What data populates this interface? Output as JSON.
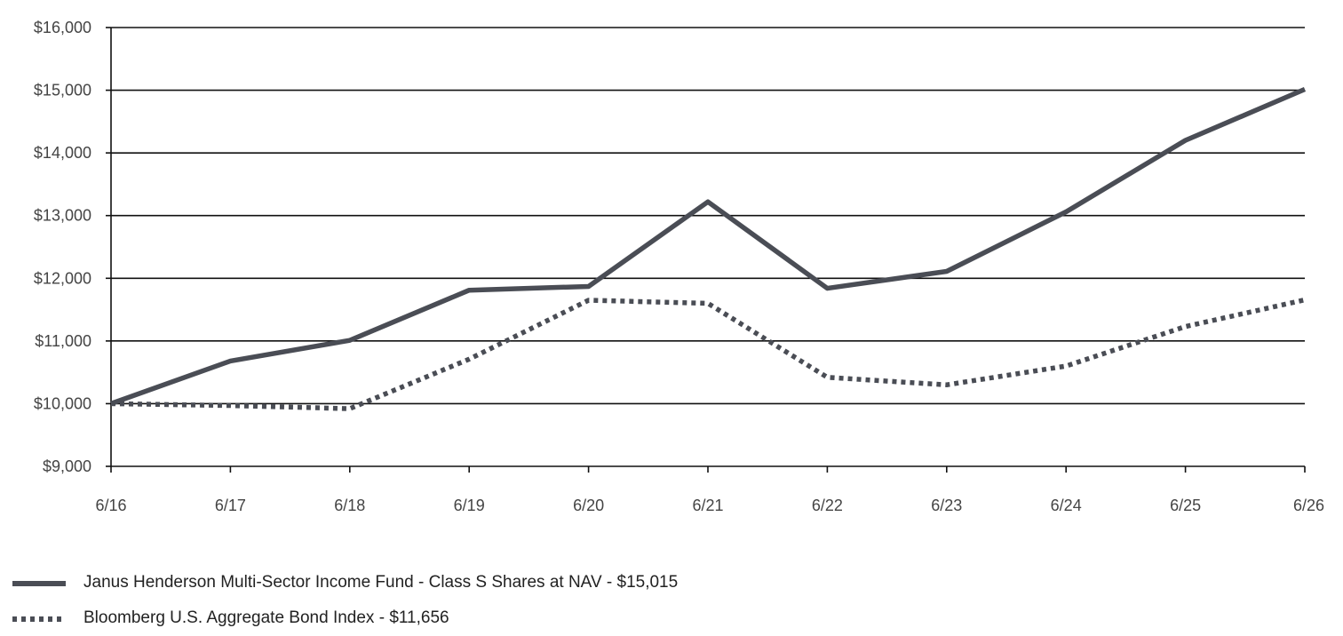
{
  "chart_data": {
    "type": "line",
    "title": "",
    "xlabel": "",
    "ylabel": "",
    "categories": [
      "6/16",
      "6/17",
      "6/18",
      "6/19",
      "6/20",
      "6/21",
      "6/22",
      "6/23",
      "6/24",
      "6/25",
      "6/26"
    ],
    "y_tick_labels": [
      "$9,000",
      "$10,000",
      "$11,000",
      "$12,000",
      "$13,000",
      "$14,000",
      "$15,000",
      "$16,000"
    ],
    "y_ticks": [
      9000,
      10000,
      11000,
      12000,
      13000,
      14000,
      15000,
      16000
    ],
    "ylim": [
      9000,
      16000
    ],
    "grid": "horizontal",
    "legend_position": "bottom-left",
    "series": [
      {
        "name": "Janus Henderson Multi-Sector Income Fund - Class S Shares at NAV - $15,015",
        "style": "solid",
        "color": "#4a4d55",
        "values": [
          10000,
          10680,
          11010,
          11810,
          11870,
          13220,
          11840,
          12110,
          13060,
          14200,
          15015
        ]
      },
      {
        "name": "Bloomberg U.S. Aggregate Bond Index - $11,656",
        "style": "dotted",
        "color": "#4a4d55",
        "values": [
          10000,
          9970,
          9920,
          10710,
          11650,
          11600,
          10420,
          10300,
          10600,
          11230,
          11656
        ]
      }
    ]
  }
}
